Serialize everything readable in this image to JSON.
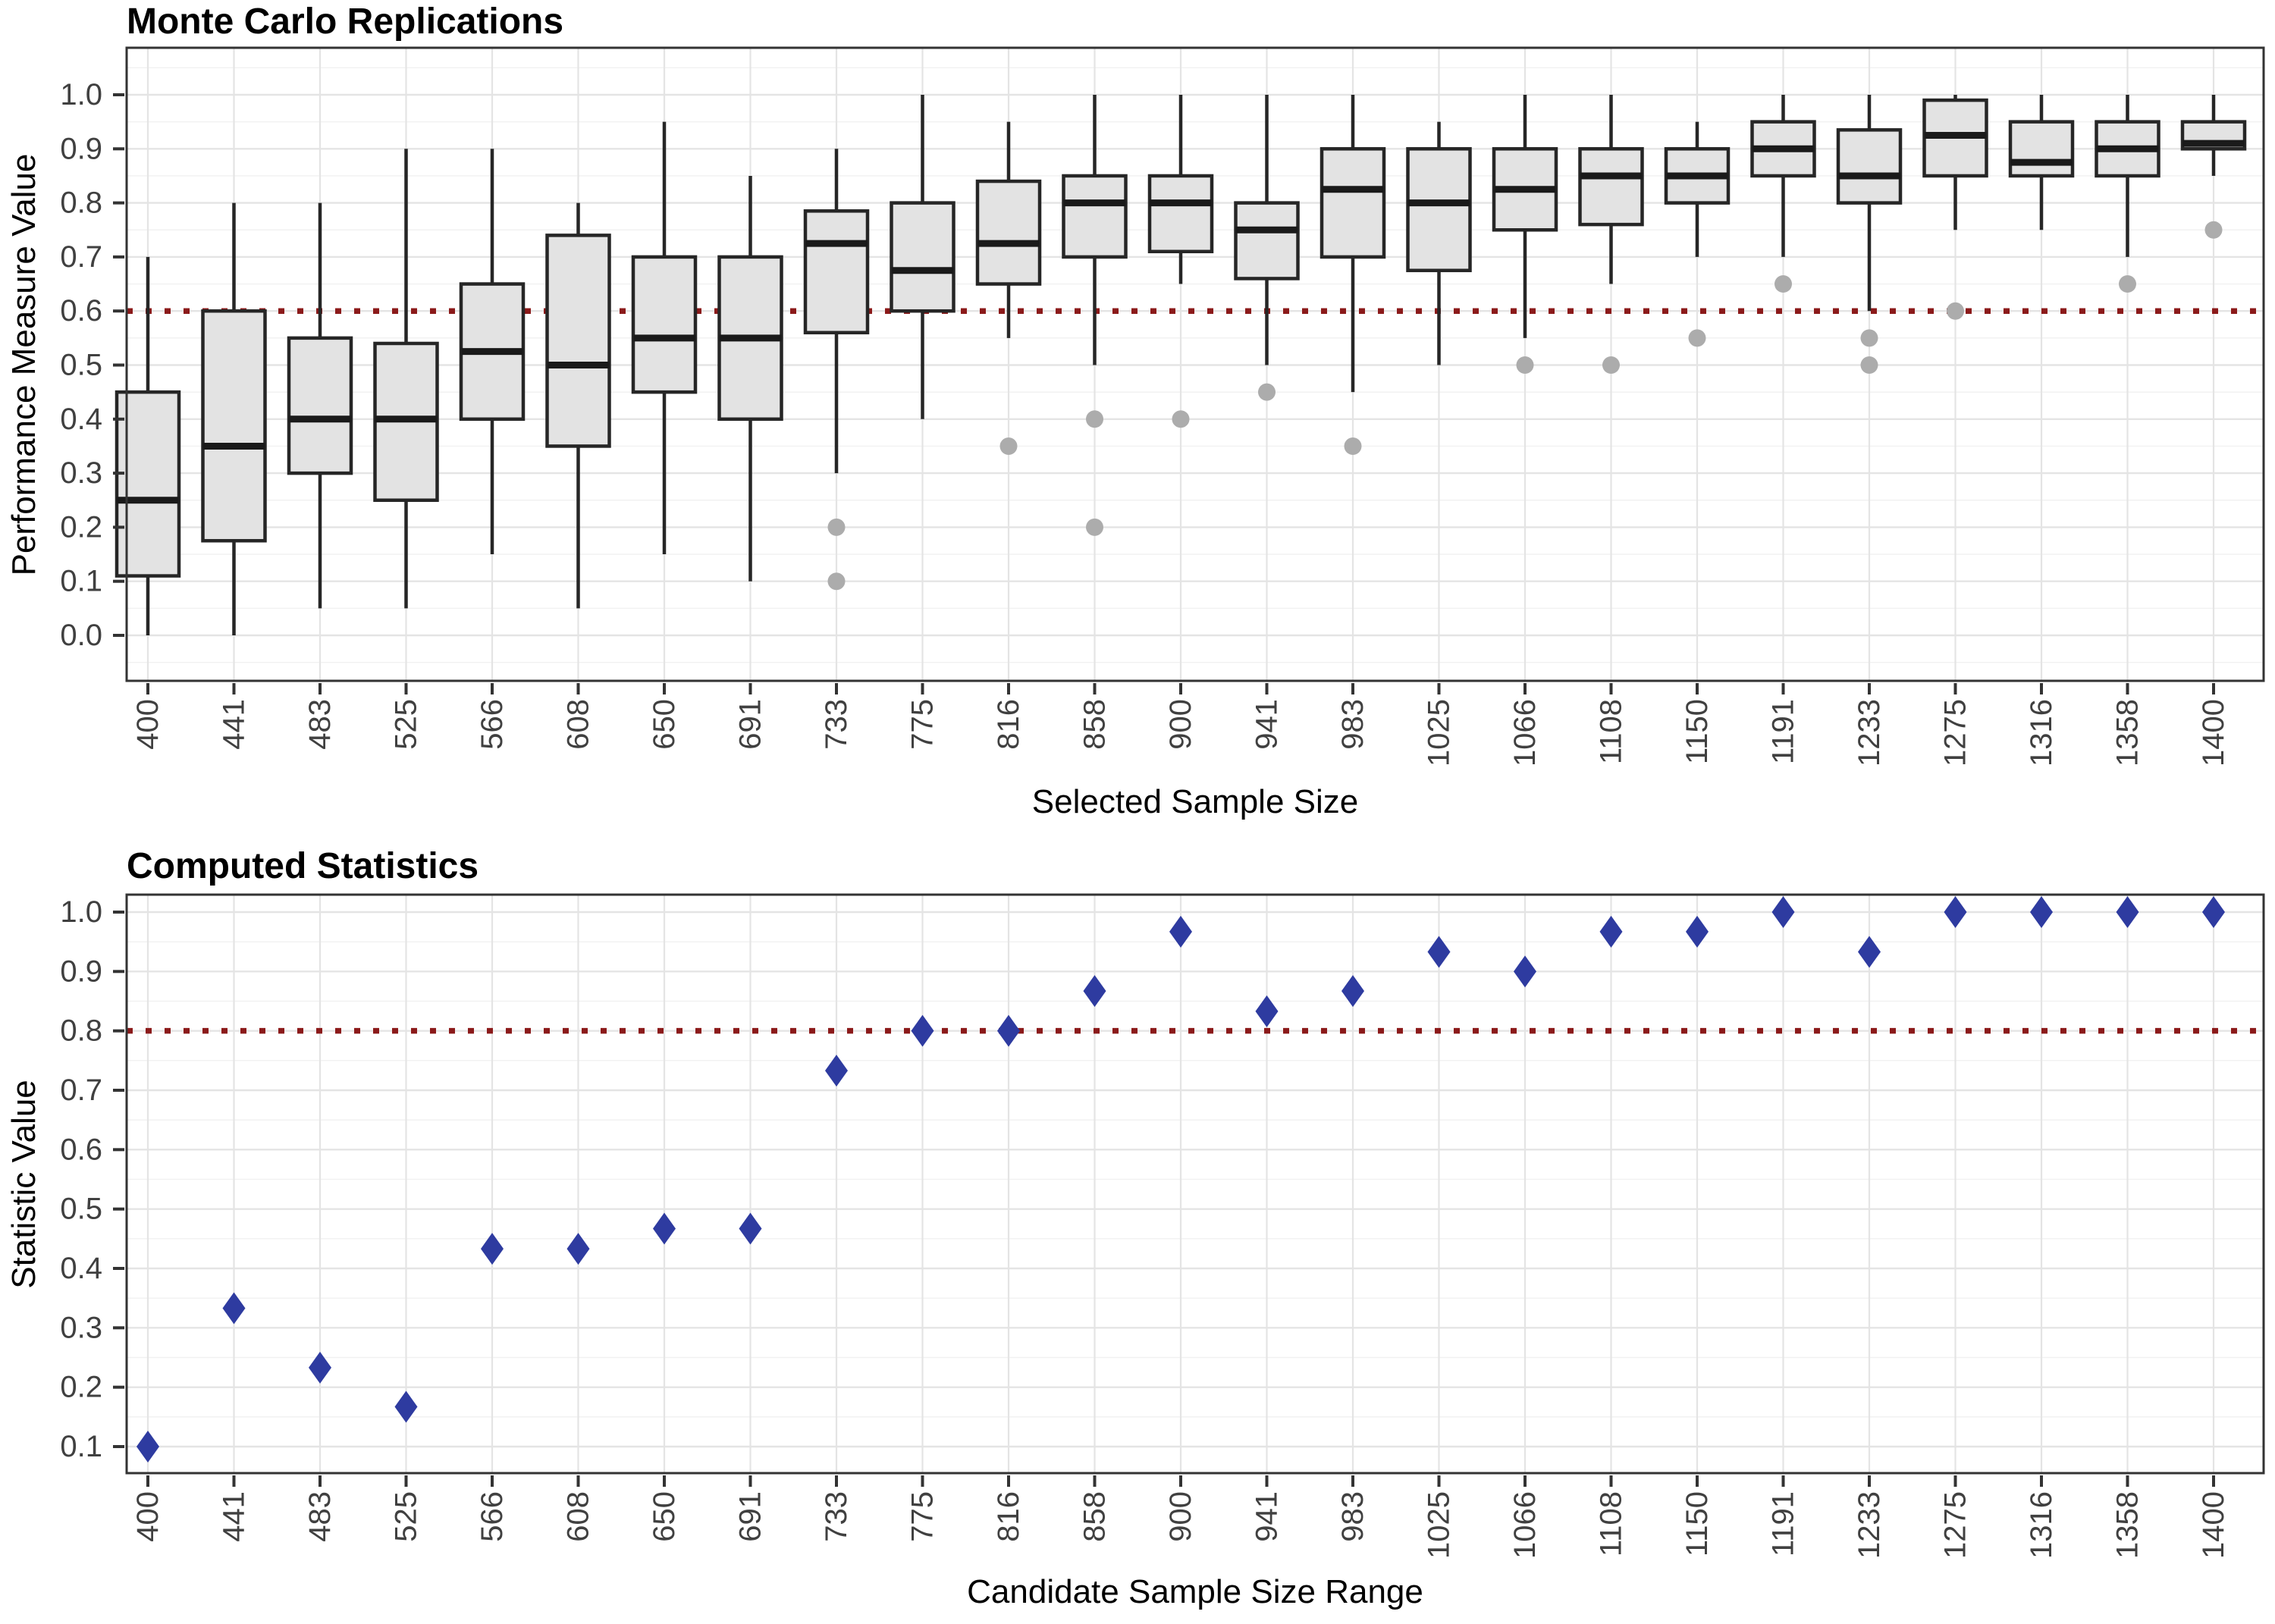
{
  "colors": {
    "background": "#ffffff",
    "panel_border": "#333333",
    "grid_major": "#e4e4e4",
    "grid_minor": "#f1f1f1",
    "box_fill": "#e3e3e3",
    "box_stroke": "#262626",
    "median_stroke": "#1a1a1a",
    "outlier_fill": "#acacac",
    "point_fill": "#2e3ba0",
    "reference_line": "#8b1a1a",
    "tick_text": "#404040",
    "title_text": "#000000"
  },
  "chart_data": [
    {
      "type": "boxplot",
      "title": "Monte Carlo Replications",
      "xlabel": "Selected Sample Size",
      "ylabel": "Performance Measure Value",
      "ylim": [
        0.0,
        1.0
      ],
      "y_ticks": [
        0.0,
        0.1,
        0.2,
        0.3,
        0.4,
        0.5,
        0.6,
        0.7,
        0.8,
        0.9,
        1.0
      ],
      "grid": true,
      "legend_position": "none",
      "reference_line": {
        "value": 0.6,
        "style": "dotted"
      },
      "categories": [
        "400",
        "441",
        "483",
        "525",
        "566",
        "608",
        "650",
        "691",
        "733",
        "775",
        "816",
        "858",
        "900",
        "941",
        "983",
        "1025",
        "1066",
        "1108",
        "1150",
        "1191",
        "1233",
        "1275",
        "1316",
        "1358",
        "1400"
      ],
      "boxes": [
        {
          "x": "400",
          "low": 0.0,
          "q1": 0.11,
          "median": 0.25,
          "q3": 0.45,
          "high": 0.7,
          "outliers": []
        },
        {
          "x": "441",
          "low": 0.0,
          "q1": 0.175,
          "median": 0.35,
          "q3": 0.6,
          "high": 0.8,
          "outliers": []
        },
        {
          "x": "483",
          "low": 0.05,
          "q1": 0.3,
          "median": 0.4,
          "q3": 0.55,
          "high": 0.8,
          "outliers": []
        },
        {
          "x": "525",
          "low": 0.05,
          "q1": 0.25,
          "median": 0.4,
          "q3": 0.54,
          "high": 0.9,
          "outliers": []
        },
        {
          "x": "566",
          "low": 0.15,
          "q1": 0.4,
          "median": 0.525,
          "q3": 0.65,
          "high": 0.9,
          "outliers": []
        },
        {
          "x": "608",
          "low": 0.05,
          "q1": 0.35,
          "median": 0.5,
          "q3": 0.74,
          "high": 0.8,
          "outliers": []
        },
        {
          "x": "650",
          "low": 0.15,
          "q1": 0.45,
          "median": 0.55,
          "q3": 0.7,
          "high": 0.95,
          "outliers": []
        },
        {
          "x": "691",
          "low": 0.1,
          "q1": 0.4,
          "median": 0.55,
          "q3": 0.7,
          "high": 0.85,
          "outliers": []
        },
        {
          "x": "733",
          "low": 0.3,
          "q1": 0.56,
          "median": 0.725,
          "q3": 0.785,
          "high": 0.9,
          "outliers": [
            0.2,
            0.1
          ]
        },
        {
          "x": "775",
          "low": 0.4,
          "q1": 0.6,
          "median": 0.675,
          "q3": 0.8,
          "high": 1.0,
          "outliers": []
        },
        {
          "x": "816",
          "low": 0.55,
          "q1": 0.65,
          "median": 0.725,
          "q3": 0.84,
          "high": 0.95,
          "outliers": [
            0.35
          ]
        },
        {
          "x": "858",
          "low": 0.5,
          "q1": 0.7,
          "median": 0.8,
          "q3": 0.85,
          "high": 1.0,
          "outliers": [
            0.4,
            0.2
          ]
        },
        {
          "x": "900",
          "low": 0.65,
          "q1": 0.71,
          "median": 0.8,
          "q3": 0.85,
          "high": 1.0,
          "outliers": [
            0.4
          ]
        },
        {
          "x": "941",
          "low": 0.5,
          "q1": 0.66,
          "median": 0.75,
          "q3": 0.8,
          "high": 1.0,
          "outliers": [
            0.45
          ]
        },
        {
          "x": "983",
          "low": 0.45,
          "q1": 0.7,
          "median": 0.825,
          "q3": 0.9,
          "high": 1.0,
          "outliers": [
            0.35
          ]
        },
        {
          "x": "1025",
          "low": 0.5,
          "q1": 0.675,
          "median": 0.8,
          "q3": 0.9,
          "high": 0.95,
          "outliers": []
        },
        {
          "x": "1066",
          "low": 0.55,
          "q1": 0.75,
          "median": 0.825,
          "q3": 0.9,
          "high": 1.0,
          "outliers": [
            0.5
          ]
        },
        {
          "x": "1108",
          "low": 0.65,
          "q1": 0.76,
          "median": 0.85,
          "q3": 0.9,
          "high": 1.0,
          "outliers": [
            0.5
          ]
        },
        {
          "x": "1150",
          "low": 0.7,
          "q1": 0.8,
          "median": 0.85,
          "q3": 0.9,
          "high": 0.95,
          "outliers": [
            0.55
          ]
        },
        {
          "x": "1191",
          "low": 0.7,
          "q1": 0.85,
          "median": 0.9,
          "q3": 0.95,
          "high": 1.0,
          "outliers": [
            0.65
          ]
        },
        {
          "x": "1233",
          "low": 0.6,
          "q1": 0.8,
          "median": 0.85,
          "q3": 0.935,
          "high": 1.0,
          "outliers": [
            0.55,
            0.5
          ]
        },
        {
          "x": "1275",
          "low": 0.75,
          "q1": 0.85,
          "median": 0.925,
          "q3": 0.99,
          "high": 1.0,
          "outliers": [
            0.6
          ]
        },
        {
          "x": "1316",
          "low": 0.75,
          "q1": 0.85,
          "median": 0.875,
          "q3": 0.95,
          "high": 1.0,
          "outliers": []
        },
        {
          "x": "1358",
          "low": 0.7,
          "q1": 0.85,
          "median": 0.9,
          "q3": 0.95,
          "high": 1.0,
          "outliers": [
            0.65
          ]
        },
        {
          "x": "1400",
          "low": 0.85,
          "q1": 0.9,
          "median": 0.91,
          "q3": 0.95,
          "high": 1.0,
          "outliers": [
            0.75
          ]
        }
      ]
    },
    {
      "type": "scatter",
      "title": "Computed Statistics",
      "xlabel": "Candidate Sample Size Range",
      "ylabel": "Statistic Value",
      "ylim": [
        0.1,
        1.0
      ],
      "y_ticks": [
        0.1,
        0.2,
        0.3,
        0.4,
        0.5,
        0.6,
        0.7,
        0.8,
        0.9,
        1.0
      ],
      "grid": true,
      "legend_position": "none",
      "marker": "diamond",
      "reference_line": {
        "value": 0.8,
        "style": "dotted"
      },
      "categories": [
        "400",
        "441",
        "483",
        "525",
        "566",
        "608",
        "650",
        "691",
        "733",
        "775",
        "816",
        "858",
        "900",
        "941",
        "983",
        "1025",
        "1066",
        "1108",
        "1150",
        "1191",
        "1233",
        "1275",
        "1316",
        "1358",
        "1400"
      ],
      "points": [
        {
          "x": "400",
          "y": 0.1
        },
        {
          "x": "441",
          "y": 0.333
        },
        {
          "x": "483",
          "y": 0.233
        },
        {
          "x": "525",
          "y": 0.167
        },
        {
          "x": "566",
          "y": 0.433
        },
        {
          "x": "608",
          "y": 0.433
        },
        {
          "x": "650",
          "y": 0.467
        },
        {
          "x": "691",
          "y": 0.467
        },
        {
          "x": "733",
          "y": 0.733
        },
        {
          "x": "775",
          "y": 0.8
        },
        {
          "x": "816",
          "y": 0.8
        },
        {
          "x": "858",
          "y": 0.867
        },
        {
          "x": "900",
          "y": 0.967
        },
        {
          "x": "941",
          "y": 0.833
        },
        {
          "x": "983",
          "y": 0.867
        },
        {
          "x": "1025",
          "y": 0.933
        },
        {
          "x": "1066",
          "y": 0.9
        },
        {
          "x": "1108",
          "y": 0.967
        },
        {
          "x": "1150",
          "y": 0.967
        },
        {
          "x": "1191",
          "y": 1.0
        },
        {
          "x": "1233",
          "y": 0.933
        },
        {
          "x": "1275",
          "y": 1.0
        },
        {
          "x": "1316",
          "y": 1.0
        },
        {
          "x": "1358",
          "y": 1.0
        },
        {
          "x": "1400",
          "y": 1.0
        }
      ]
    }
  ]
}
